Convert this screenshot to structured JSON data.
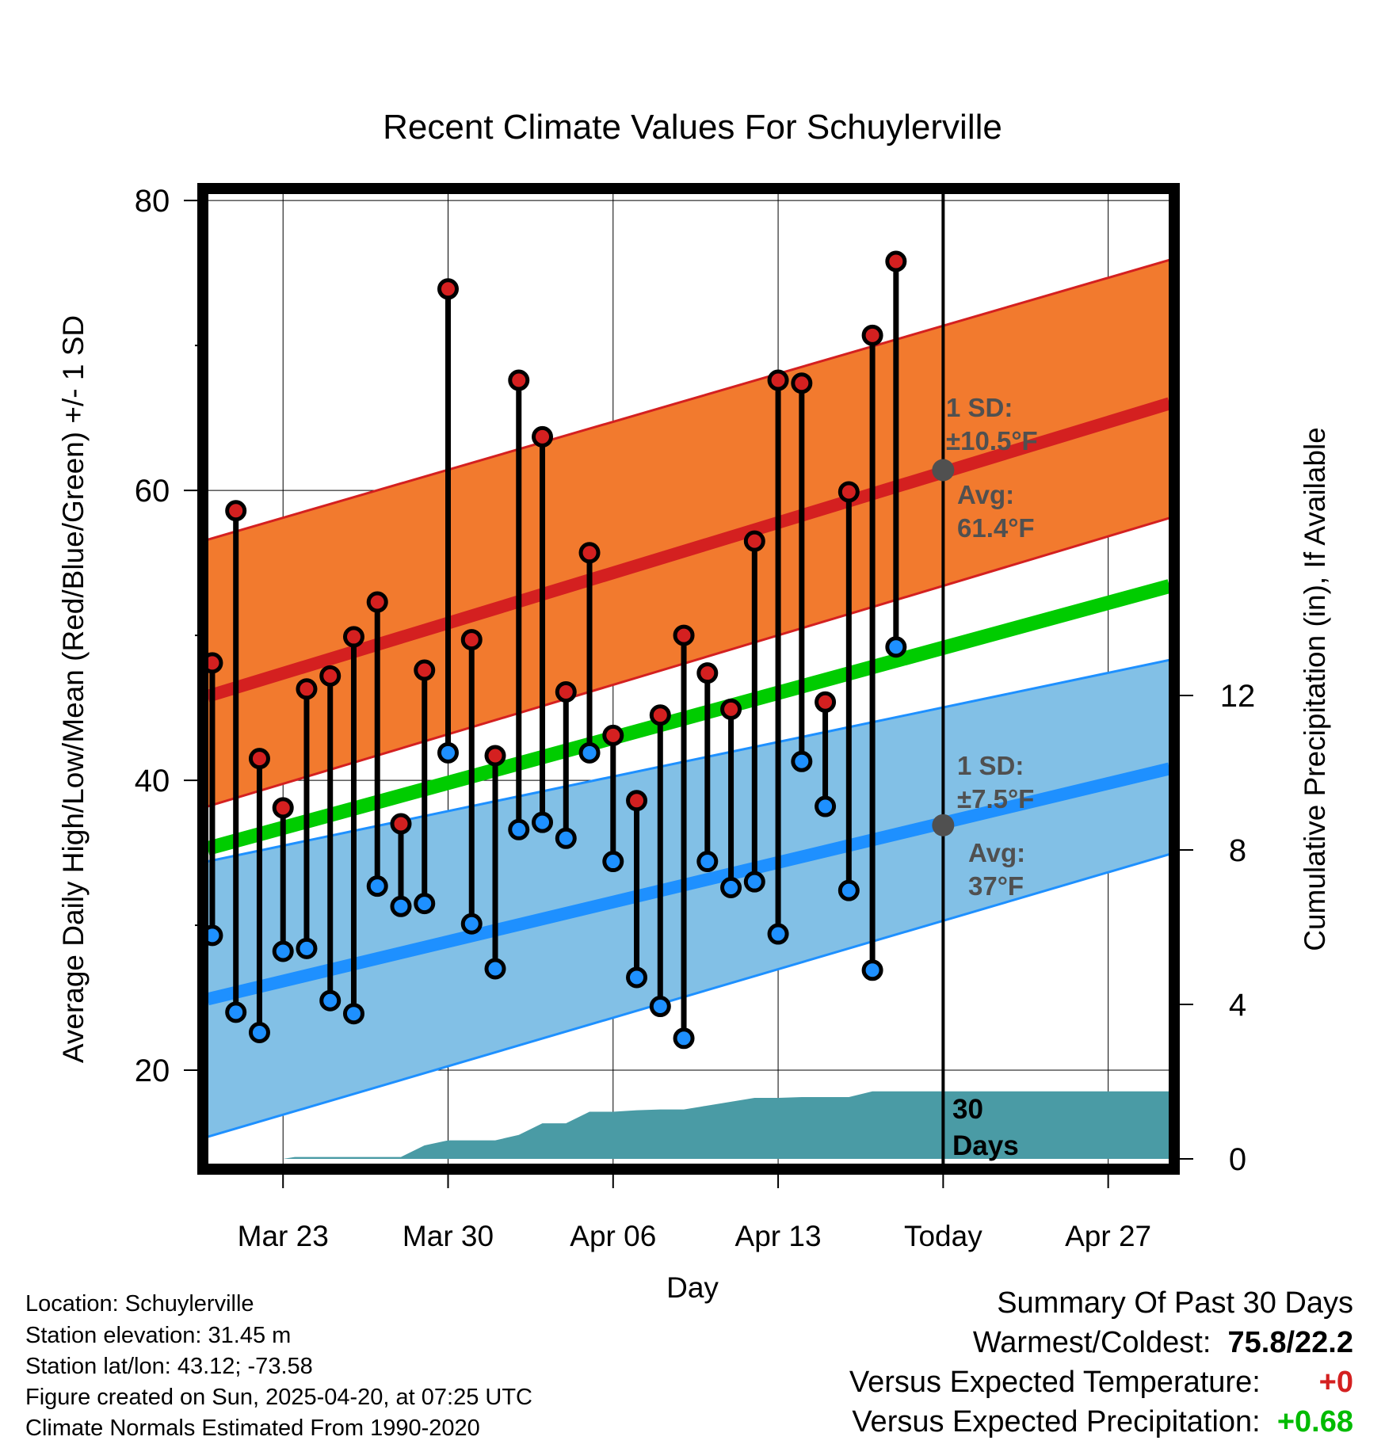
{
  "chart_data": {
    "type": "line",
    "title": "Recent Climate Values For Schuylerville",
    "xlabel": "Day",
    "ylabel": "Average Daily High/Low/Mean (Red/Blue/Green) +/- 1 SD",
    "y2label": "Cumulative Precipitation (in), If Available",
    "xticks": [
      {
        "day": 4,
        "label": "Mar 23"
      },
      {
        "day": 11,
        "label": "Mar 30"
      },
      {
        "day": 18,
        "label": "Apr 06"
      },
      {
        "day": 25,
        "label": "Apr 13"
      },
      {
        "day": 32,
        "label": "Today"
      },
      {
        "day": 39,
        "label": "Apr 27"
      }
    ],
    "xlim": [
      0.8,
      41.6
    ],
    "ylim": [
      13.5,
      80.5
    ],
    "yticks": [
      20,
      40,
      60,
      80
    ],
    "y2lim": [
      0,
      30
    ],
    "y2ticks": [
      0,
      4,
      8,
      12
    ],
    "days": [
      1,
      2,
      3,
      4,
      5,
      6,
      7,
      8,
      9,
      10,
      11,
      12,
      13,
      14,
      15,
      16,
      17,
      18,
      19,
      20,
      21,
      22,
      23,
      24,
      25,
      26,
      27,
      28,
      29,
      30
    ],
    "daily_high": [
      48.1,
      58.6,
      41.5,
      38.1,
      46.3,
      47.2,
      49.9,
      52.3,
      37.0,
      47.6,
      73.9,
      49.7,
      41.7,
      67.6,
      63.7,
      46.1,
      55.7,
      43.1,
      38.6,
      44.5,
      50.0,
      47.4,
      44.9,
      56.5,
      67.6,
      67.4,
      45.4,
      59.9,
      70.7,
      75.8
    ],
    "daily_low": [
      29.3,
      24.0,
      22.6,
      28.2,
      28.4,
      24.8,
      23.9,
      32.7,
      31.3,
      31.5,
      41.9,
      30.1,
      27.0,
      36.6,
      37.1,
      36.0,
      41.9,
      34.4,
      26.4,
      24.4,
      22.2,
      34.4,
      32.6,
      33.0,
      29.4,
      41.3,
      38.2,
      32.4,
      26.9,
      49.2
    ],
    "normal_high": {
      "x": [
        0.8,
        41.6
      ],
      "mean": [
        45.8,
        66.0
      ],
      "upper": [
        56.6,
        75.9
      ],
      "lower": [
        38.2,
        58.1
      ]
    },
    "normal_low": {
      "x": [
        0.8,
        41.6
      ],
      "mean": [
        24.9,
        40.8
      ],
      "upper": [
        34.4,
        48.3
      ],
      "lower": [
        15.4,
        34.9
      ]
    },
    "normal_mean": {
      "x": [
        0.8,
        41.6
      ],
      "values": [
        35.3,
        53.4
      ]
    },
    "precip_cumulative": {
      "x": [
        0.8,
        1,
        4,
        4.5,
        9,
        10,
        11,
        13,
        14,
        15,
        16,
        17,
        18,
        19,
        20,
        21,
        21.7,
        22,
        24,
        25,
        26,
        28,
        29,
        32,
        41.6
      ],
      "y": [
        0.0,
        0.0,
        0.0,
        0.05,
        0.05,
        0.35,
        0.48,
        0.48,
        0.62,
        0.92,
        0.92,
        1.22,
        1.22,
        1.26,
        1.28,
        1.28,
        1.35,
        1.38,
        1.58,
        1.58,
        1.6,
        1.6,
        1.75,
        1.75,
        1.75
      ]
    },
    "today_day": 32,
    "annotations": {
      "high_sd_label": "1 SD:",
      "high_sd_value": "±10.5°F",
      "high_avg_label": "Avg:",
      "high_avg_value": "61.4°F",
      "high_avg_point": 61.4,
      "low_sd_label": "1 SD:",
      "low_sd_value": "±7.5°F",
      "low_avg_label": "Avg:",
      "low_avg_value": "37°F",
      "low_avg_point": 36.9,
      "days_label_1": "30",
      "days_label_2": "Days"
    },
    "colors": {
      "high_band": "#f27a2e",
      "high_line": "#d42020",
      "low_band": "#82c0e6",
      "low_line": "#1e90ff",
      "mean_line": "#00cc00",
      "precip": "#4a9ba5",
      "high_dot": "#d42020",
      "low_dot": "#1e90ff",
      "annotation": "#505050"
    }
  },
  "info": {
    "location": "Location: Schuylerville",
    "elevation": "Station elevation: 31.45 m",
    "latlon": "Station lat/lon: 43.12; -73.58",
    "created": "Figure created on Sun, 2025-04-20, at 07:25 UTC",
    "normals": "Climate Normals Estimated From 1990-2020"
  },
  "summary": {
    "heading": "Summary Of Past 30 Days",
    "warm_cold_label": "Warmest/Coldest:",
    "warm_cold_value": "75.8/22.2",
    "temp_label": "Versus Expected Temperature:",
    "temp_value": "+0",
    "temp_color": "#d42020",
    "precip_label": "Versus Expected Precipitation:",
    "precip_value": "+0.68",
    "precip_color": "#00bb00"
  }
}
